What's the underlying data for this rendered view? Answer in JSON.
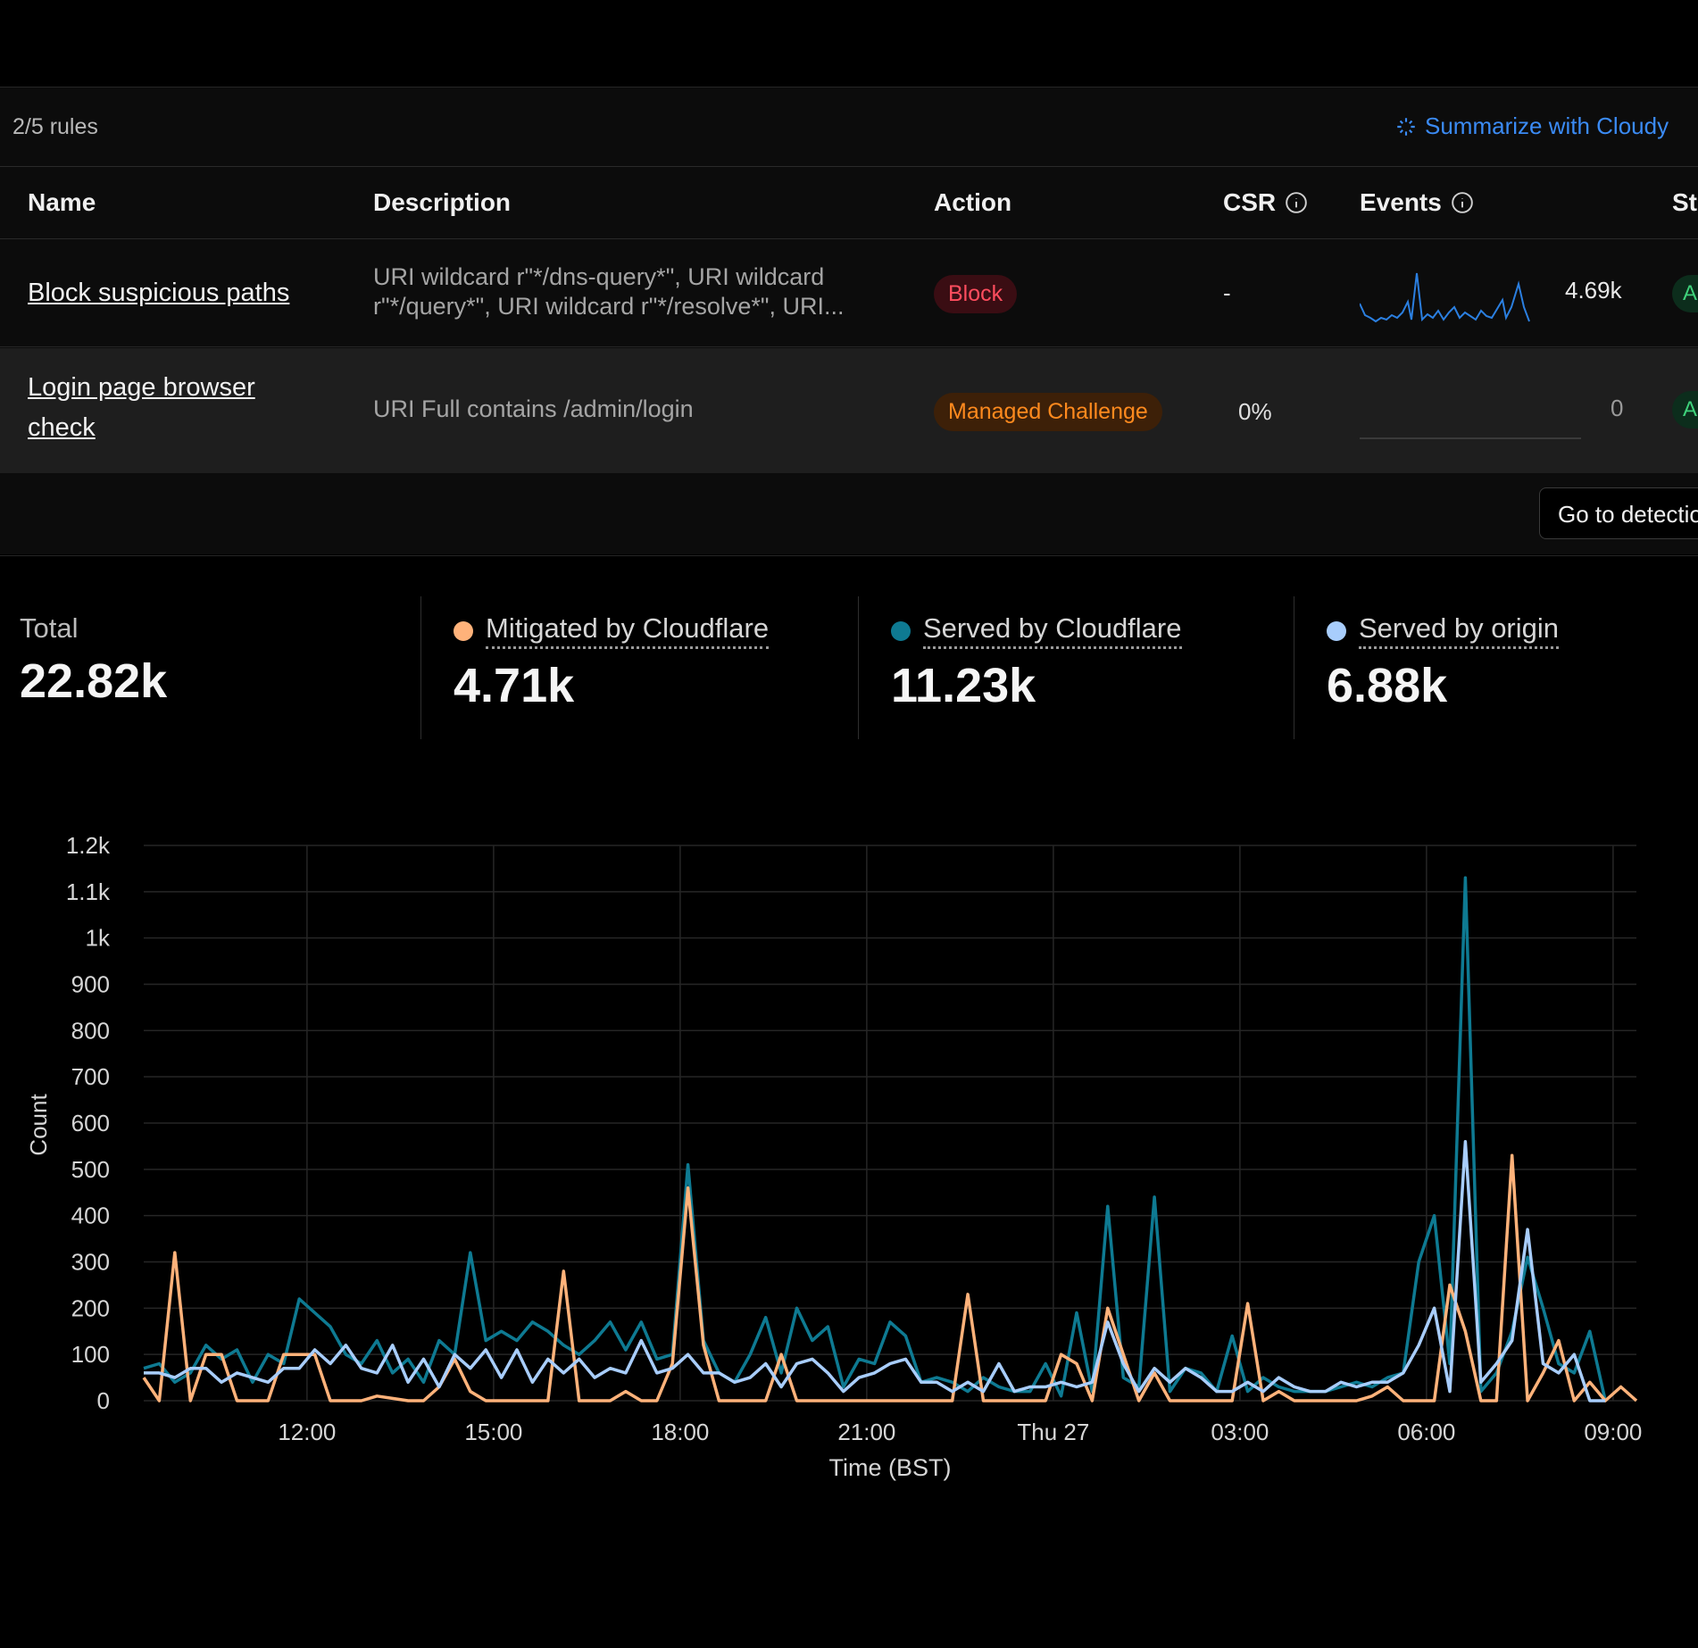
{
  "rules_panel": {
    "count_text": "2/5 rules",
    "summarize_label": "Summarize with Cloudy",
    "columns": {
      "name": "Name",
      "description": "Description",
      "action": "Action",
      "csr": "CSR",
      "events": "Events",
      "status": "St"
    },
    "rows": [
      {
        "name": "Block suspicious paths",
        "description_line1": "URI wildcard r\"*/dns-query*\", URI wildcard",
        "description_line2": "r\"*/query*\", URI wildcard r\"*/resolve*\", URI...",
        "action": "Block",
        "csr": "-",
        "events": "4.69k",
        "status": "A"
      },
      {
        "name_line1": "Login page browser",
        "name_line2": "check",
        "description": "URI Full contains /admin/login",
        "action": "Managed Challenge",
        "csr": "0%",
        "events": "0",
        "status": "A"
      }
    ],
    "detection_button": "Go to detectio"
  },
  "stats": [
    {
      "label": "Total",
      "value": "22.82k"
    },
    {
      "label": "Mitigated by Cloudflare",
      "value": "4.71k",
      "color": "#ffb27a"
    },
    {
      "label": "Served by Cloudflare",
      "value": "11.23k",
      "color": "#0e7a92"
    },
    {
      "label": "Served by origin",
      "value": "6.88k",
      "color": "#a8cdfc"
    }
  ],
  "colors": {
    "block_badge": "#ff4d5e",
    "managed_challenge_badge": "#ff8a1e",
    "link_accent": "#3b8bf5",
    "sparkline": "#2b7fe0"
  },
  "chart_data": {
    "type": "line",
    "ylabel": "Count",
    "xlabel": "Time (BST)",
    "y_ticks": [
      "0",
      "100",
      "200",
      "300",
      "400",
      "500",
      "600",
      "700",
      "800",
      "900",
      "1k",
      "1.1k",
      "1.2k"
    ],
    "ylim": [
      0,
      1200
    ],
    "x_ticks": [
      {
        "label": "12:00",
        "at": 10.5
      },
      {
        "label": "15:00",
        "at": 22.5
      },
      {
        "label": "18:00",
        "at": 34.5
      },
      {
        "label": "21:00",
        "at": 46.5
      },
      {
        "label": "Thu 27",
        "at": 58.5
      },
      {
        "label": "03:00",
        "at": 70.5
      },
      {
        "label": "06:00",
        "at": 82.5
      },
      {
        "label": "09:00",
        "at": 94.5
      }
    ],
    "grid": true,
    "series": [
      {
        "name": "Mitigated by Cloudflare",
        "color": "#ffb27a",
        "values": [
          50,
          0,
          320,
          0,
          100,
          100,
          0,
          0,
          0,
          100,
          100,
          100,
          0,
          0,
          0,
          10,
          5,
          0,
          0,
          30,
          90,
          20,
          0,
          0,
          0,
          0,
          0,
          280,
          0,
          0,
          0,
          20,
          0,
          0,
          80,
          460,
          120,
          0,
          0,
          0,
          0,
          100,
          0,
          0,
          0,
          0,
          0,
          0,
          0,
          0,
          0,
          0,
          0,
          230,
          0,
          0,
          0,
          0,
          0,
          100,
          80,
          0,
          200,
          100,
          0,
          60,
          0,
          0,
          0,
          0,
          0,
          210,
          0,
          20,
          0,
          0,
          0,
          0,
          0,
          10,
          30,
          0,
          0,
          0,
          250,
          150,
          0,
          0,
          530,
          0,
          60,
          130,
          0,
          40,
          0,
          30,
          0
        ]
      },
      {
        "name": "Served by Cloudflare",
        "color": "#0e7a92",
        "values": [
          70,
          80,
          40,
          60,
          120,
          90,
          110,
          40,
          100,
          80,
          220,
          190,
          160,
          100,
          80,
          130,
          60,
          90,
          40,
          130,
          100,
          320,
          130,
          150,
          130,
          170,
          150,
          120,
          100,
          130,
          170,
          110,
          170,
          90,
          100,
          510,
          130,
          60,
          40,
          100,
          180,
          60,
          200,
          130,
          160,
          30,
          90,
          80,
          170,
          140,
          40,
          50,
          40,
          20,
          50,
          30,
          20,
          20,
          80,
          10,
          190,
          20,
          420,
          50,
          30,
          440,
          20,
          70,
          60,
          20,
          140,
          20,
          50,
          30,
          20,
          20,
          20,
          30,
          40,
          30,
          50,
          60,
          300,
          400,
          80,
          1130,
          20,
          60,
          150,
          310,
          200,
          80,
          60,
          150,
          0
        ]
      },
      {
        "name": "Served by origin",
        "color": "#a8cdfc",
        "values": [
          60,
          60,
          50,
          70,
          70,
          40,
          60,
          50,
          40,
          70,
          70,
          110,
          80,
          120,
          70,
          60,
          120,
          40,
          90,
          30,
          100,
          70,
          110,
          50,
          110,
          40,
          90,
          60,
          90,
          50,
          70,
          60,
          130,
          60,
          70,
          100,
          60,
          60,
          40,
          50,
          80,
          30,
          80,
          90,
          60,
          20,
          50,
          60,
          80,
          90,
          40,
          40,
          20,
          40,
          20,
          80,
          20,
          30,
          30,
          40,
          30,
          40,
          170,
          80,
          20,
          70,
          40,
          70,
          50,
          20,
          20,
          40,
          20,
          50,
          30,
          20,
          20,
          40,
          30,
          40,
          40,
          60,
          120,
          200,
          20,
          560,
          40,
          80,
          130,
          370,
          80,
          60,
          100,
          0,
          0
        ]
      }
    ]
  }
}
